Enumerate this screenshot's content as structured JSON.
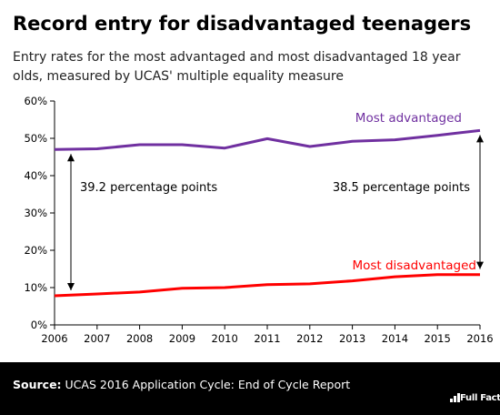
{
  "header": {
    "title": "Record entry for disadvantaged teenagers",
    "subtitle": "Entry rates for the most advantaged and most disadvantaged 18 year olds, measured by UCAS' multiple equality measure"
  },
  "footer": {
    "source_label": "Source:",
    "source_text": "UCAS 2016 Application Cycle: End of Cycle Report",
    "logo_text": "Full Fact"
  },
  "chart_data": {
    "type": "line",
    "title": "Record entry for disadvantaged teenagers",
    "xlabel": "",
    "ylabel": "",
    "x": [
      2006,
      2007,
      2008,
      2009,
      2010,
      2011,
      2012,
      2013,
      2014,
      2015,
      2016
    ],
    "ylim": [
      0,
      60
    ],
    "yticks": [
      "0%",
      "10%",
      "20%",
      "30%",
      "40%",
      "50%",
      "60%"
    ],
    "y_format": "percent",
    "grid": false,
    "series": [
      {
        "name": "Most advantaged",
        "color": "#7030a0",
        "values": [
          47.0,
          47.2,
          48.3,
          48.3,
          47.4,
          49.9,
          47.8,
          49.2,
          49.6,
          50.8,
          52.1
        ]
      },
      {
        "name": "Most disadvantaged",
        "color": "#ff0000",
        "values": [
          7.8,
          8.3,
          8.8,
          9.8,
          10.0,
          10.8,
          11.0,
          11.8,
          12.9,
          13.5,
          13.5
        ]
      }
    ],
    "annotations": [
      {
        "text": "39.2 percentage points",
        "x": 2006,
        "from": 7.8,
        "to": 47.0
      },
      {
        "text": "38.5 percentage points",
        "x": 2016,
        "from": 13.5,
        "to": 52.1
      }
    ]
  }
}
